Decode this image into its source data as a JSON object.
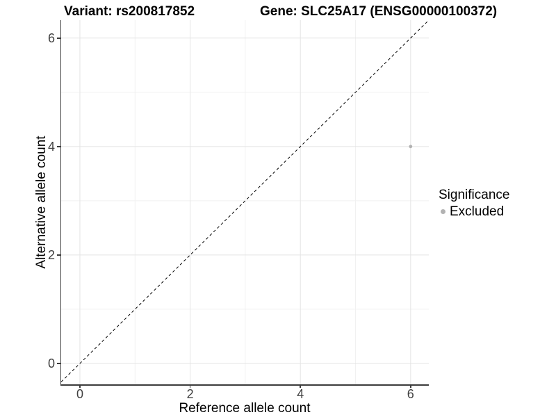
{
  "titles": {
    "variant": "Variant: rs200817852",
    "gene": "Gene: SLC25A17 (ENSG00000100372)"
  },
  "chart_data": {
    "type": "scatter",
    "xlabel": "Reference allele count",
    "ylabel": "Alternative allele count",
    "xlim": [
      -0.34,
      6.33
    ],
    "ylim": [
      -0.385,
      6.33
    ],
    "xticks": [
      0,
      2,
      4,
      6
    ],
    "yticks": [
      0,
      2,
      4,
      6
    ],
    "x_minor_ticks": [
      1,
      3,
      5
    ],
    "y_minor_ticks": [
      1,
      3,
      5
    ],
    "grid": true,
    "points": [
      {
        "x": 6,
        "y": 4,
        "series": "Excluded"
      }
    ],
    "abline": {
      "slope": 1,
      "intercept": 0,
      "style": "dashed"
    },
    "legend": {
      "title": "Significance",
      "position": "right",
      "entries": [
        {
          "label": "Excluded",
          "color": "#b2b2b2"
        }
      ]
    },
    "colors": {
      "point": "#b2b2b2",
      "grid_major": "#e4e4e4",
      "grid_minor": "#f1f1f1",
      "abline": "#000000",
      "axis_line": "#3c3c3c",
      "tick_label": "#404040"
    }
  }
}
